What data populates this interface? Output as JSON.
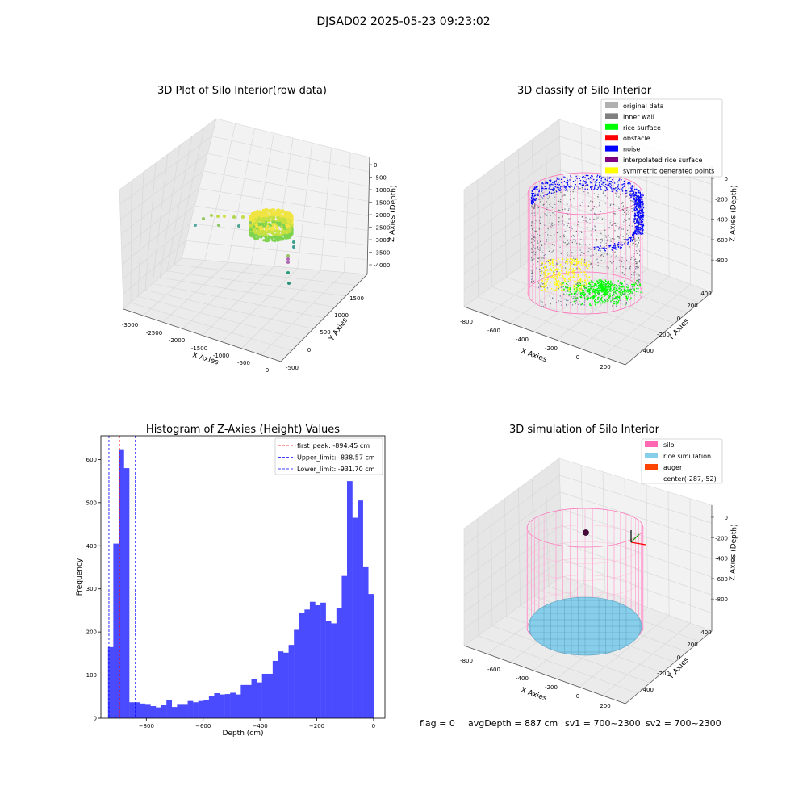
{
  "figure": {
    "suptitle": "DJSAD02 2025-05-23 09:23:02",
    "status": {
      "flag": "flag = 0",
      "avg_depth": "avgDepth = 887 cm",
      "sv1": "sv1 = 700~2300",
      "sv2": "sv2 = 700~2300"
    }
  },
  "panel1": {
    "title": "3D Plot of Silo Interior(row data)",
    "xlabel": "X Axies",
    "ylabel": "Y Axies",
    "zlabel": "Z Axies (Depth)",
    "xticks": [
      "-3000",
      "-2500",
      "-2000",
      "-1500",
      "-1000",
      "-500",
      "0"
    ],
    "yticks": [
      "-500",
      "0",
      "500",
      "1000",
      "1500"
    ],
    "zticks": [
      "0",
      "-500",
      "-1000",
      "-1500",
      "-2000",
      "-2500",
      "-3000",
      "-3500",
      "-4000"
    ]
  },
  "panel2": {
    "title": "3D classify of Silo Interior",
    "xlabel": "X Axies",
    "ylabel": "Y Axies",
    "zlabel": "Z Axies (Depth)",
    "xticks": [
      "-800",
      "-600",
      "-400",
      "-200",
      "0",
      "200"
    ],
    "yticks": [
      "400",
      "200",
      "0",
      "-200",
      "-400"
    ],
    "zticks": [
      "0",
      "-200",
      "-400",
      "-600",
      "-800"
    ],
    "legend": [
      {
        "label": "original data",
        "color": "#b0b0b0"
      },
      {
        "label": "inner wall",
        "color": "#808080"
      },
      {
        "label": "rice surface",
        "color": "#00ff00"
      },
      {
        "label": "obstacle",
        "color": "#ff0000"
      },
      {
        "label": "noise",
        "color": "#0000ff"
      },
      {
        "label": "interpolated rice surface",
        "color": "#800080"
      },
      {
        "label": "symmetric generated points",
        "color": "#ffff00"
      }
    ]
  },
  "panel3": {
    "title": "3D simulation of Silo Interior",
    "xlabel": "X Axies",
    "ylabel": "Y Axies",
    "zlabel": "Z Axies (Depth)",
    "xticks": [
      "-800",
      "-600",
      "-400",
      "-200",
      "0",
      "200"
    ],
    "yticks": [
      "400",
      "200",
      "0",
      "-200",
      "-400"
    ],
    "zticks": [
      "0",
      "-200",
      "-400",
      "-600",
      "-800"
    ],
    "legend": [
      {
        "label": "silo",
        "color": "#ff69b4"
      },
      {
        "label": "rice simulation",
        "color": "#87ceeb"
      },
      {
        "label": "auger",
        "color": "#ff4500"
      },
      {
        "label": "center(-287,-52)",
        "color": ""
      }
    ]
  },
  "chart_data": {
    "type": "bar",
    "title": "Histogram of Z-Axies (Height) Values",
    "xlabel": "Depth (cm)",
    "ylabel": "Frequency",
    "xlim": [
      -960,
      40
    ],
    "ylim": [
      0,
      655
    ],
    "xticks": [
      -800,
      -600,
      -400,
      -200,
      0
    ],
    "yticks": [
      0,
      100,
      200,
      300,
      400,
      500,
      600
    ],
    "bar_color": "#4a4aff",
    "bin_edges_start": -935,
    "bin_width": 18.7,
    "values": [
      165,
      405,
      622,
      580,
      37,
      37,
      34,
      33,
      28,
      25,
      30,
      43,
      26,
      33,
      33,
      40,
      37,
      40,
      43,
      52,
      58,
      55,
      56,
      59,
      55,
      77,
      77,
      91,
      83,
      103,
      103,
      133,
      155,
      152,
      170,
      205,
      245,
      252,
      270,
      262,
      268,
      225,
      220,
      255,
      330,
      550,
      465,
      505,
      352,
      288
    ],
    "vlines": [
      {
        "label": "first_peak: -894.45 cm",
        "x": -894.45,
        "color": "#ff0000"
      },
      {
        "label": "Upper_limit: -838.57 cm",
        "x": -838.57,
        "color": "#0000ff"
      },
      {
        "label": "Lower_limit: -931.70 cm",
        "x": -931.7,
        "color": "#0000ff"
      }
    ]
  }
}
